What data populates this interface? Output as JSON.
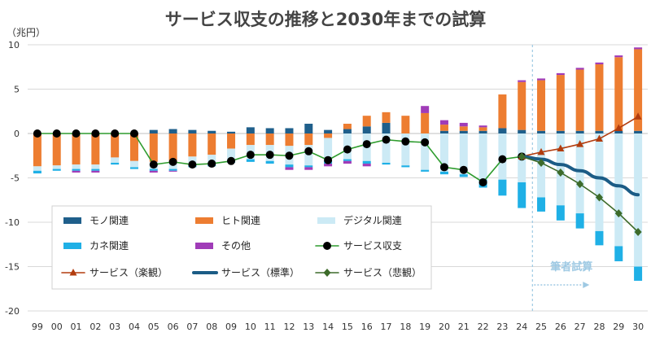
{
  "chart_data": {
    "type": "bar",
    "title": "サービス収支の推移と2030年までの試算",
    "ylabel": "（兆円）",
    "ylim": [
      -20,
      10
    ],
    "yticks": [
      10,
      5,
      0,
      -5,
      -10,
      -15,
      -20
    ],
    "categories": [
      "99",
      "00",
      "01",
      "02",
      "03",
      "04",
      "05",
      "06",
      "07",
      "08",
      "09",
      "10",
      "11",
      "12",
      "13",
      "14",
      "15",
      "16",
      "17",
      "18",
      "19",
      "20",
      "21",
      "22",
      "23",
      "24",
      "25",
      "26",
      "27",
      "28",
      "29",
      "30"
    ],
    "annotation": "筆者試算",
    "forecast_start": "25",
    "stacked_series": [
      {
        "name": "モノ関連",
        "color": "#1f5f8b",
        "values": [
          0,
          0,
          0,
          0,
          0,
          0,
          0.4,
          0.5,
          0.4,
          0.3,
          0.2,
          0.7,
          0.6,
          0.6,
          1.1,
          0.4,
          0.5,
          0.8,
          1.2,
          0,
          0,
          0.3,
          0.3,
          0.3,
          0.6,
          0.4,
          0.3,
          0.3,
          0.3,
          0.3,
          0.3,
          0.3
        ]
      },
      {
        "name": "ヒト関連",
        "color": "#ed7d31",
        "values": [
          -3.7,
          -3.6,
          -3.5,
          -3.5,
          -2.7,
          -3.1,
          -3.2,
          -3.1,
          -2.6,
          -2.4,
          -1.7,
          -1.3,
          -1.3,
          -1.4,
          -1.3,
          -0.5,
          0.6,
          1.2,
          1.2,
          2.0,
          2.3,
          0.7,
          0.5,
          0.4,
          3.8,
          5.4,
          5.7,
          6.3,
          6.9,
          7.5,
          8.3,
          9.2
        ]
      },
      {
        "name": "デジタル関連",
        "color": "#cceaf5",
        "values": [
          -0.5,
          -0.4,
          -0.5,
          -0.5,
          -0.6,
          -0.7,
          -0.8,
          -0.9,
          -1.0,
          -1.1,
          -1.3,
          -1.6,
          -1.8,
          -2.1,
          -2.3,
          -2.6,
          -2.9,
          -3.1,
          -3.3,
          -3.6,
          -4.1,
          -4.3,
          -4.6,
          -5.2,
          -5.2,
          -5.5,
          -7.2,
          -8.1,
          -9.0,
          -11.0,
          -12.7,
          -15.0
        ]
      },
      {
        "name": "カネ関連",
        "color": "#1fb0e6",
        "values": [
          -0.3,
          -0.2,
          -0.2,
          -0.2,
          -0.2,
          -0.2,
          -0.2,
          -0.2,
          -0.2,
          -0.2,
          -0.3,
          -0.3,
          -0.3,
          -0.3,
          -0.2,
          -0.3,
          -0.2,
          -0.3,
          -0.2,
          -0.2,
          -0.2,
          -0.3,
          -0.3,
          -0.9,
          -1.8,
          -2.9,
          -1.6,
          -1.7,
          -1.7,
          -1.6,
          -1.7,
          -1.6
        ]
      },
      {
        "name": "その他",
        "color": "#a03cb8",
        "values": [
          0,
          0,
          -0.2,
          -0.2,
          0,
          0,
          -0.2,
          -0.1,
          0,
          0,
          0,
          0,
          0,
          -0.3,
          -0.3,
          -0.3,
          -0.3,
          -0.3,
          0,
          0,
          0.8,
          0.5,
          0.4,
          0.2,
          0,
          0.2,
          0.2,
          0.2,
          0.2,
          0.2,
          0.2,
          0.2
        ]
      }
    ],
    "line_series": [
      {
        "name": "サービス収支",
        "color": "#2e9c2e",
        "marker": "circle",
        "categories_from": "99",
        "values": [
          0,
          0,
          0,
          0,
          0,
          0,
          -3.5,
          -3.2,
          -3.5,
          -3.4,
          -3.1,
          -2.4,
          -2.4,
          -2.5,
          -2.0,
          -3.0,
          -1.8,
          -1.2,
          -0.7,
          -0.9,
          -1.0,
          -3.8,
          -4.1,
          -5.5,
          -2.9,
          -2.6
        ]
      },
      {
        "name": "サービス（楽観）",
        "color": "#b23c0e",
        "marker": "triangle",
        "categories_from": "24",
        "values": [
          -2.6,
          -2.1,
          -1.7,
          -1.2,
          -0.6,
          0.6,
          1.9
        ]
      },
      {
        "name": "サービス（標準）",
        "color": "#1b5c86",
        "marker": "none",
        "categories_from": "24",
        "values": [
          -2.6,
          -2.9,
          -3.5,
          -4.2,
          -5.0,
          -5.9,
          -6.9
        ]
      },
      {
        "name": "サービス（悲観）",
        "color": "#3d6b2a",
        "marker": "diamond",
        "categories_from": "24",
        "values": [
          -2.6,
          -3.3,
          -4.4,
          -5.7,
          -7.2,
          -9.0,
          -11.1
        ]
      }
    ]
  }
}
